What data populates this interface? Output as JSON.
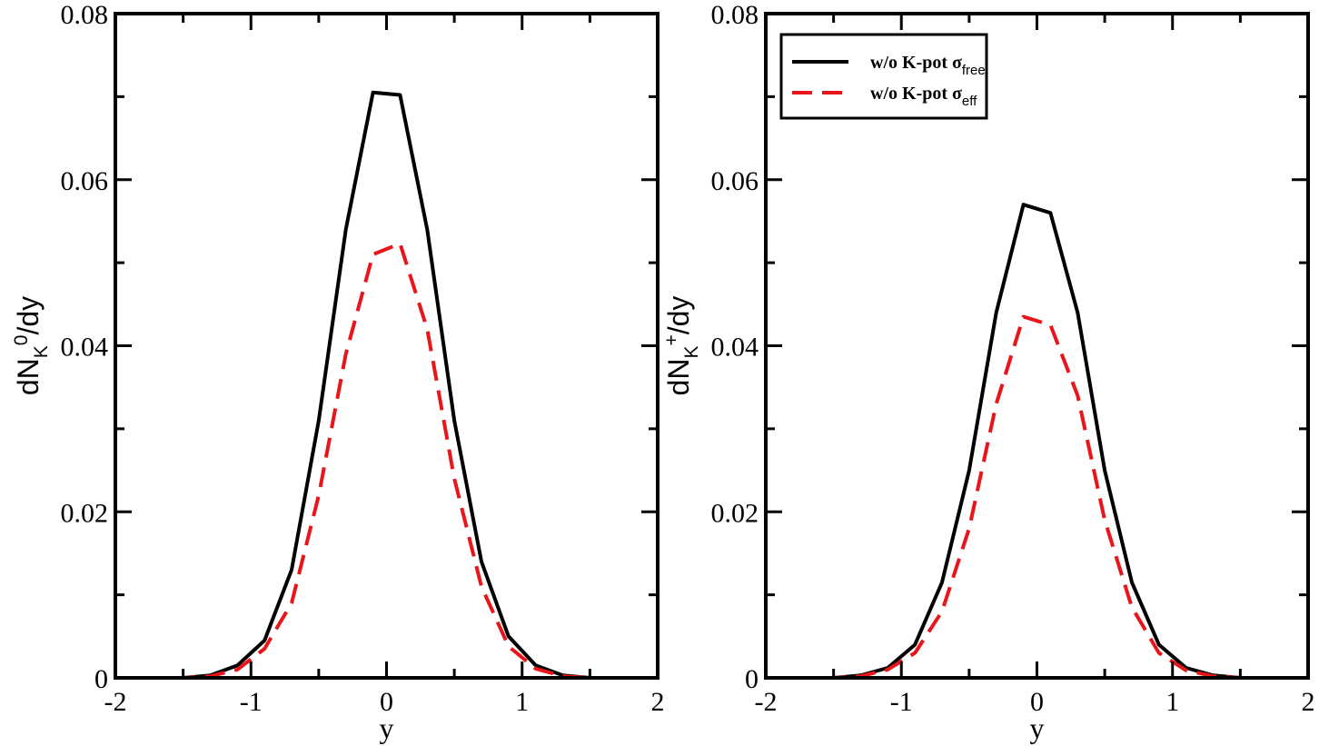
{
  "chart_data": [
    {
      "type": "line",
      "xlabel": "y",
      "ylabel": {
        "main": "dN",
        "sub": "K",
        "sup": "0",
        "tail": "/dy"
      },
      "xlim": [
        -2,
        2
      ],
      "ylim": [
        0,
        0.08
      ],
      "x_ticks": [
        -2,
        -1,
        0,
        1,
        2
      ],
      "x_tick_labels": [
        "-2",
        "-1",
        "0",
        "1",
        "2"
      ],
      "y_ticks": [
        0,
        0.02,
        0.04,
        0.06,
        0.08
      ],
      "y_tick_labels": [
        "0",
        "0.02",
        "0.04",
        "0.06",
        "0.08"
      ],
      "grid": false,
      "legend": null,
      "series": [
        {
          "style": "solid",
          "color": "#000000",
          "x": [
            -2.0,
            -1.5,
            -1.3,
            -1.1,
            -0.9,
            -0.7,
            -0.5,
            -0.3,
            -0.1,
            0.1,
            0.3,
            0.5,
            0.7,
            0.9,
            1.1,
            1.3,
            1.5,
            2.0
          ],
          "y": [
            0.0,
            0.0,
            0.0003,
            0.0015,
            0.0045,
            0.013,
            0.031,
            0.054,
            0.0705,
            0.0702,
            0.054,
            0.031,
            0.014,
            0.005,
            0.0015,
            0.0003,
            0.0,
            0.0
          ]
        },
        {
          "style": "dashed",
          "color": "#e8151b",
          "x": [
            -2.0,
            -1.5,
            -1.3,
            -1.1,
            -0.9,
            -0.7,
            -0.5,
            -0.3,
            -0.1,
            0.1,
            0.3,
            0.5,
            0.7,
            0.9,
            1.1,
            1.3,
            1.5,
            2.0
          ],
          "y": [
            0.0,
            0.0,
            0.0002,
            0.001,
            0.0035,
            0.009,
            0.022,
            0.039,
            0.051,
            0.0523,
            0.042,
            0.024,
            0.011,
            0.0038,
            0.0011,
            0.0002,
            0.0,
            0.0
          ]
        }
      ]
    },
    {
      "type": "line",
      "xlabel": "y",
      "ylabel": {
        "main": "dN",
        "sub": "K",
        "sup": "+",
        "tail": "/dy"
      },
      "xlim": [
        -2,
        2
      ],
      "ylim": [
        0,
        0.08
      ],
      "x_ticks": [
        -2,
        -1,
        0,
        1,
        2
      ],
      "x_tick_labels": [
        "-2",
        "-1",
        "0",
        "1",
        "2"
      ],
      "y_ticks": [
        0,
        0.02,
        0.04,
        0.06,
        0.08
      ],
      "y_tick_labels": [
        "0",
        "0.02",
        "0.04",
        "0.06",
        "0.08"
      ],
      "grid": false,
      "legend": {
        "placement": "top-left",
        "entries": [
          {
            "text": "w/o K-pot σ",
            "sub": "free",
            "style": "solid",
            "color": "#000000"
          },
          {
            "text": "w/o K-pot σ",
            "sub": "eff",
            "style": "dashed",
            "color": "#e8151b"
          }
        ]
      },
      "series": [
        {
          "style": "solid",
          "color": "#000000",
          "x": [
            -2.0,
            -1.5,
            -1.3,
            -1.1,
            -0.9,
            -0.7,
            -0.5,
            -0.3,
            -0.1,
            0.1,
            0.3,
            0.5,
            0.7,
            0.9,
            1.1,
            1.3,
            1.5,
            2.0
          ],
          "y": [
            0.0,
            0.0,
            0.0003,
            0.0012,
            0.004,
            0.0115,
            0.025,
            0.044,
            0.057,
            0.056,
            0.044,
            0.025,
            0.0115,
            0.004,
            0.0012,
            0.0003,
            0.0,
            0.0
          ]
        },
        {
          "style": "dashed",
          "color": "#e8151b",
          "x": [
            -2.0,
            -1.5,
            -1.3,
            -1.1,
            -0.9,
            -0.7,
            -0.5,
            -0.3,
            -0.1,
            0.1,
            0.3,
            0.5,
            0.7,
            0.9,
            1.1,
            1.3,
            1.5,
            2.0
          ],
          "y": [
            0.0,
            0.0,
            0.0002,
            0.001,
            0.003,
            0.008,
            0.018,
            0.033,
            0.0435,
            0.0425,
            0.034,
            0.019,
            0.0085,
            0.003,
            0.0009,
            0.0002,
            0.0,
            0.0
          ]
        }
      ]
    }
  ]
}
